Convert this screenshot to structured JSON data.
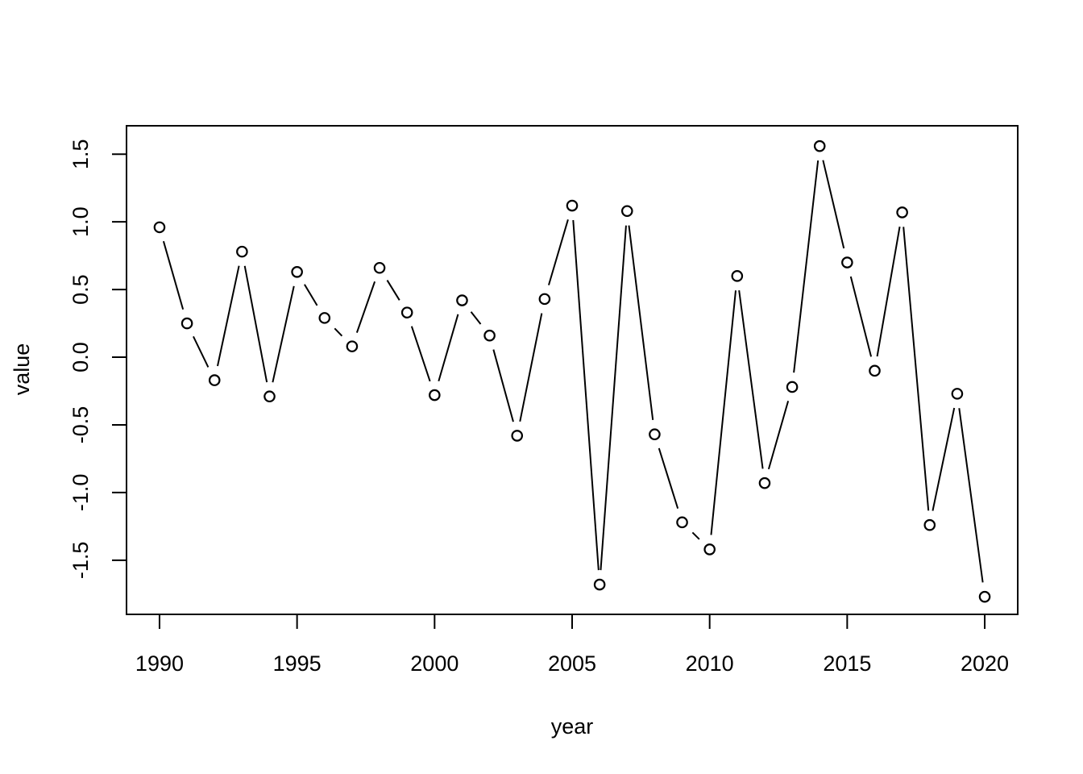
{
  "chart_data": {
    "type": "line",
    "style": "r-base-plot type='b' (lines with gaps + open circle markers)",
    "title": "",
    "xlabel": "year",
    "ylabel": "value",
    "x": [
      1990,
      1991,
      1992,
      1993,
      1994,
      1995,
      1996,
      1997,
      1998,
      1999,
      2000,
      2001,
      2002,
      2003,
      2004,
      2005,
      2006,
      2007,
      2008,
      2009,
      2010,
      2011,
      2012,
      2013,
      2014,
      2015,
      2016,
      2017,
      2018,
      2019,
      2020
    ],
    "series": [
      {
        "name": "value",
        "values": [
          0.96,
          0.25,
          -0.17,
          0.78,
          -0.29,
          0.63,
          0.29,
          0.08,
          0.66,
          0.33,
          -0.28,
          0.42,
          0.16,
          -0.58,
          0.43,
          1.12,
          -1.68,
          1.08,
          -0.57,
          -1.22,
          -1.42,
          0.6,
          -0.93,
          -0.22,
          1.56,
          0.7,
          -0.1,
          1.07,
          -1.24,
          -0.27,
          -1.77
        ]
      }
    ],
    "xticks": {
      "values": [
        1990,
        1995,
        2000,
        2005,
        2010,
        2015,
        2020
      ],
      "labels": [
        "1990",
        "1995",
        "2000",
        "2005",
        "2010",
        "2015",
        "2020"
      ]
    },
    "yticks": {
      "values": [
        -1.5,
        -1.0,
        -0.5,
        0.0,
        0.5,
        1.0,
        1.5
      ],
      "labels": [
        "-1.5",
        "-1.0",
        "-0.5",
        "0.0",
        "0.5",
        "1.0",
        "1.5"
      ]
    },
    "xlim": [
      1988.8,
      2021.2
    ],
    "ylim": [
      -1.9,
      1.71
    ],
    "grid": false,
    "legend": null,
    "marker": "open-circle",
    "colors": {
      "line": "#000000",
      "marker_stroke": "#000000",
      "text": "#000000",
      "background": "#ffffff"
    }
  }
}
